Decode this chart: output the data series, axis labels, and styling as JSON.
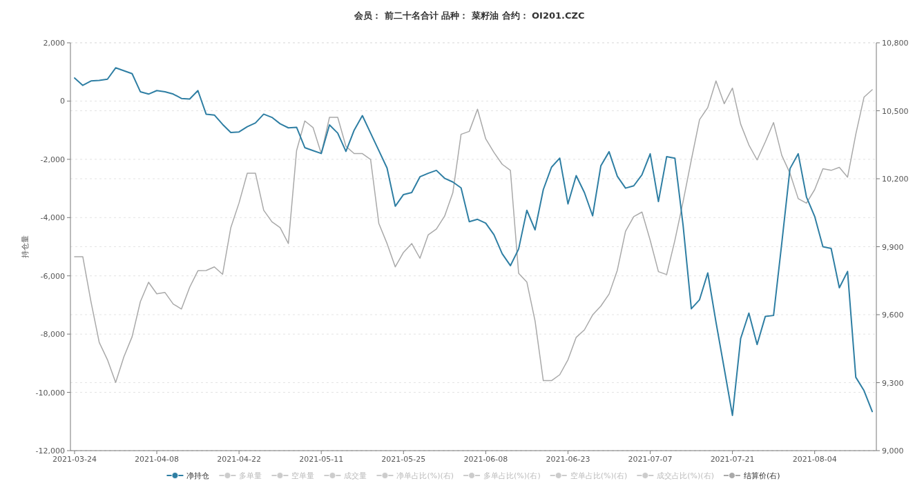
{
  "chart_data": {
    "type": "line",
    "title": "会员： 前二十名合计 品种： 菜籽油 合约： OI201.CZC",
    "ylabel": "持仓量",
    "categories": [
      "2021-03-24",
      null,
      null,
      null,
      null,
      null,
      null,
      null,
      null,
      null,
      "2021-04-08",
      null,
      null,
      null,
      null,
      null,
      null,
      null,
      null,
      null,
      "2021-04-22",
      null,
      null,
      null,
      null,
      null,
      null,
      null,
      null,
      null,
      "2021-05-11",
      null,
      null,
      null,
      null,
      null,
      null,
      null,
      null,
      null,
      "2021-05-25",
      null,
      null,
      null,
      null,
      null,
      null,
      null,
      null,
      null,
      "2021-06-08",
      null,
      null,
      null,
      null,
      null,
      null,
      null,
      null,
      null,
      "2021-06-23",
      null,
      null,
      null,
      null,
      null,
      null,
      null,
      null,
      null,
      "2021-07-07",
      null,
      null,
      null,
      null,
      null,
      null,
      null,
      null,
      null,
      "2021-07-21",
      null,
      null,
      null,
      null,
      null,
      null,
      null,
      null,
      null,
      "2021-08-04",
      null,
      null,
      null,
      null,
      null,
      null,
      null
    ],
    "series": [
      {
        "name": "净持仓",
        "color": "#2e7ea3",
        "axis": "y",
        "values": [
          790,
          540,
          690,
          710,
          750,
          1140,
          1040,
          940,
          320,
          240,
          360,
          320,
          240,
          90,
          70,
          360,
          -450,
          -480,
          -800,
          -1080,
          -1060,
          -880,
          -750,
          -450,
          -560,
          -780,
          -920,
          -900,
          -1600,
          -1700,
          -1800,
          -820,
          -1100,
          -1730,
          -1000,
          -500,
          -1100,
          -1700,
          -2300,
          -3610,
          -3210,
          -3140,
          -2600,
          -2480,
          -2380,
          -2650,
          -2780,
          -2980,
          -4140,
          -4060,
          -4190,
          -4590,
          -5240,
          -5650,
          -5080,
          -3750,
          -4420,
          -3040,
          -2270,
          -1960,
          -3530,
          -2560,
          -3140,
          -3940,
          -2220,
          -1740,
          -2580,
          -2990,
          -2910,
          -2530,
          -1810,
          -3450,
          -1910,
          -1960,
          -4270,
          -7130,
          -6820,
          -5900,
          -7590,
          -9180,
          -10790,
          -8150,
          -7280,
          -8360,
          -7390,
          -7360,
          -4880,
          -2320,
          -1810,
          -3290,
          -3960,
          -5000,
          -5060,
          -6410,
          -5850,
          -9480,
          -9940,
          -10660
        ]
      },
      {
        "name": "多单量",
        "color": "#cccccc",
        "values": [
          null,
          null,
          null,
          null,
          null,
          null,
          null,
          null,
          null,
          null,
          null,
          null,
          null,
          null,
          null,
          null,
          null,
          null,
          null,
          null,
          null,
          null,
          null,
          null,
          null,
          null,
          null,
          null,
          null,
          null,
          null,
          null,
          null,
          null,
          null,
          null,
          null,
          null,
          null,
          null,
          null,
          null,
          null,
          null,
          null,
          null,
          null,
          null,
          null,
          null,
          null,
          null,
          null,
          null,
          null,
          null,
          null,
          null,
          null,
          null,
          null,
          null,
          null,
          null,
          null,
          null,
          null,
          null,
          null,
          null,
          null,
          null,
          null,
          null,
          null,
          null,
          null,
          null,
          null,
          null,
          null,
          null,
          null,
          null,
          null,
          null,
          null,
          null,
          null,
          null,
          null,
          null,
          null,
          null,
          null,
          null,
          null,
          null
        ]
      },
      {
        "name": "空单量",
        "color": "#cccccc",
        "values": [
          null,
          null,
          null,
          null,
          null,
          null,
          null,
          null,
          null,
          null,
          null,
          null,
          null,
          null,
          null,
          null,
          null,
          null,
          null,
          null,
          null,
          null,
          null,
          null,
          null,
          null,
          null,
          null,
          null,
          null,
          null,
          null,
          null,
          null,
          null,
          null,
          null,
          null,
          null,
          null,
          null,
          null,
          null,
          null,
          null,
          null,
          null,
          null,
          null,
          null,
          null,
          null,
          null,
          null,
          null,
          null,
          null,
          null,
          null,
          null,
          null,
          null,
          null,
          null,
          null,
          null,
          null,
          null,
          null,
          null,
          null,
          null,
          null,
          null,
          null,
          null,
          null,
          null,
          null,
          null,
          null,
          null,
          null,
          null,
          null,
          null,
          null,
          null,
          null,
          null,
          null,
          null,
          null,
          null,
          null,
          null,
          null,
          null
        ]
      },
      {
        "name": "成交量",
        "color": "#cccccc",
        "values": [
          null,
          null,
          null,
          null,
          null,
          null,
          null,
          null,
          null,
          null,
          null,
          null,
          null,
          null,
          null,
          null,
          null,
          null,
          null,
          null,
          null,
          null,
          null,
          null,
          null,
          null,
          null,
          null,
          null,
          null,
          null,
          null,
          null,
          null,
          null,
          null,
          null,
          null,
          null,
          null,
          null,
          null,
          null,
          null,
          null,
          null,
          null,
          null,
          null,
          null,
          null,
          null,
          null,
          null,
          null,
          null,
          null,
          null,
          null,
          null,
          null,
          null,
          null,
          null,
          null,
          null,
          null,
          null,
          null,
          null,
          null,
          null,
          null,
          null,
          null,
          null,
          null,
          null,
          null,
          null,
          null,
          null,
          null,
          null,
          null,
          null,
          null,
          null,
          null,
          null,
          null,
          null,
          null,
          null,
          null,
          null,
          null,
          null
        ]
      },
      {
        "name": "净单占比(%)(右)",
        "color": "#cccccc",
        "values": [
          null,
          null,
          null,
          null,
          null,
          null,
          null,
          null,
          null,
          null,
          null,
          null,
          null,
          null,
          null,
          null,
          null,
          null,
          null,
          null,
          null,
          null,
          null,
          null,
          null,
          null,
          null,
          null,
          null,
          null,
          null,
          null,
          null,
          null,
          null,
          null,
          null,
          null,
          null,
          null,
          null,
          null,
          null,
          null,
          null,
          null,
          null,
          null,
          null,
          null,
          null,
          null,
          null,
          null,
          null,
          null,
          null,
          null,
          null,
          null,
          null,
          null,
          null,
          null,
          null,
          null,
          null,
          null,
          null,
          null,
          null,
          null,
          null,
          null,
          null,
          null,
          null,
          null,
          null,
          null,
          null,
          null,
          null,
          null,
          null,
          null,
          null,
          null,
          null,
          null,
          null,
          null,
          null,
          null,
          null,
          null,
          null,
          null
        ]
      },
      {
        "name": "多单占比(%)(右)",
        "color": "#cccccc",
        "values": [
          null,
          null,
          null,
          null,
          null,
          null,
          null,
          null,
          null,
          null,
          null,
          null,
          null,
          null,
          null,
          null,
          null,
          null,
          null,
          null,
          null,
          null,
          null,
          null,
          null,
          null,
          null,
          null,
          null,
          null,
          null,
          null,
          null,
          null,
          null,
          null,
          null,
          null,
          null,
          null,
          null,
          null,
          null,
          null,
          null,
          null,
          null,
          null,
          null,
          null,
          null,
          null,
          null,
          null,
          null,
          null,
          null,
          null,
          null,
          null,
          null,
          null,
          null,
          null,
          null,
          null,
          null,
          null,
          null,
          null,
          null,
          null,
          null,
          null,
          null,
          null,
          null,
          null,
          null,
          null,
          null,
          null,
          null,
          null,
          null,
          null,
          null,
          null,
          null,
          null,
          null,
          null,
          null,
          null,
          null,
          null,
          null,
          null
        ]
      },
      {
        "name": "空单占比(%)(右)",
        "color": "#cccccc",
        "values": [
          null,
          null,
          null,
          null,
          null,
          null,
          null,
          null,
          null,
          null,
          null,
          null,
          null,
          null,
          null,
          null,
          null,
          null,
          null,
          null,
          null,
          null,
          null,
          null,
          null,
          null,
          null,
          null,
          null,
          null,
          null,
          null,
          null,
          null,
          null,
          null,
          null,
          null,
          null,
          null,
          null,
          null,
          null,
          null,
          null,
          null,
          null,
          null,
          null,
          null,
          null,
          null,
          null,
          null,
          null,
          null,
          null,
          null,
          null,
          null,
          null,
          null,
          null,
          null,
          null,
          null,
          null,
          null,
          null,
          null,
          null,
          null,
          null,
          null,
          null,
          null,
          null,
          null,
          null,
          null,
          null,
          null,
          null,
          null,
          null,
          null,
          null,
          null,
          null,
          null,
          null,
          null,
          null,
          null,
          null,
          null,
          null,
          null
        ]
      },
      {
        "name": "成交占比(%)(右)",
        "color": "#cccccc",
        "values": [
          null,
          null,
          null,
          null,
          null,
          null,
          null,
          null,
          null,
          null,
          null,
          null,
          null,
          null,
          null,
          null,
          null,
          null,
          null,
          null,
          null,
          null,
          null,
          null,
          null,
          null,
          null,
          null,
          null,
          null,
          null,
          null,
          null,
          null,
          null,
          null,
          null,
          null,
          null,
          null,
          null,
          null,
          null,
          null,
          null,
          null,
          null,
          null,
          null,
          null,
          null,
          null,
          null,
          null,
          null,
          null,
          null,
          null,
          null,
          null,
          null,
          null,
          null,
          null,
          null,
          null,
          null,
          null,
          null,
          null,
          null,
          null,
          null,
          null,
          null,
          null,
          null,
          null,
          null,
          null,
          null,
          null,
          null,
          null,
          null,
          null,
          null,
          null,
          null,
          null,
          null,
          null,
          null,
          null,
          null,
          null,
          null,
          null
        ]
      },
      {
        "name": "结算价(右)",
        "color": "#a9a9a9",
        "axis": "y2",
        "values": [
          9856,
          9856,
          9657,
          9478,
          9401,
          9301,
          9414,
          9503,
          9657,
          9743,
          9692,
          9698,
          9647,
          9625,
          9721,
          9794,
          9795,
          9811,
          9778,
          9984,
          10093,
          10224,
          10224,
          10061,
          10010,
          9984,
          9914,
          10324,
          10455,
          10426,
          10311,
          10471,
          10471,
          10343,
          10311,
          10311,
          10285,
          10003,
          9914,
          9811,
          9875,
          9914,
          9849,
          9952,
          9978,
          10035,
          10138,
          10396,
          10409,
          10507,
          10376,
          10316,
          10264,
          10237,
          9783,
          9744,
          9572,
          9309,
          9309,
          9335,
          9401,
          9500,
          9533,
          9599,
          9638,
          9691,
          9796,
          9968,
          10033,
          10053,
          9928,
          9790,
          9777,
          9928,
          10099,
          10283,
          10461,
          10514,
          10632,
          10531,
          10600,
          10441,
          10349,
          10283,
          10363,
          10448,
          10303,
          10224,
          10112,
          10092,
          10152,
          10244,
          10237,
          10250,
          10207,
          10396,
          10560,
          10593
        ]
      }
    ],
    "ylim": [
      -12000,
      2000
    ],
    "yticks": [
      {
        "value": -12000,
        "label": "-12,000"
      },
      {
        "value": -10000,
        "label": "-10,000"
      },
      {
        "value": -8000,
        "label": "-8,000"
      },
      {
        "value": -6000,
        "label": "-6,000"
      },
      {
        "value": -4000,
        "label": "-4,000"
      },
      {
        "value": -2000,
        "label": "-2,000"
      },
      0,
      {
        "value": 2000,
        "label": "2,000"
      }
    ],
    "y2lim": [
      9000,
      10800
    ],
    "y2ticks": [
      {
        "value": 9000,
        "label": "9,000"
      },
      {
        "value": 9300,
        "label": "9,300"
      },
      {
        "value": 9600,
        "label": "9,600"
      },
      {
        "value": 9900,
        "label": "9,900"
      },
      {
        "value": 10200,
        "label": "10,200"
      },
      {
        "value": 10500,
        "label": "10,500"
      },
      {
        "value": 10800,
        "label": "10,800"
      }
    ],
    "grid": "y",
    "legend": "bottom",
    "marker": "none",
    "line_style": "solid"
  }
}
